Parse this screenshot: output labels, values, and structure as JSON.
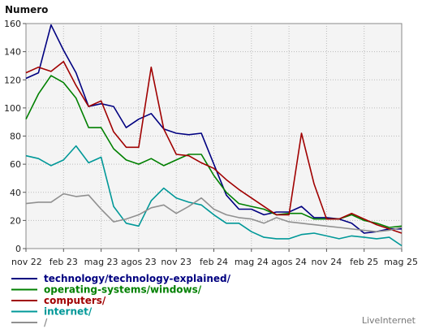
{
  "chart_data": {
    "type": "line",
    "ylabel": "Numero",
    "ylim": [
      0,
      160
    ],
    "yticks": [
      0,
      20,
      40,
      60,
      80,
      100,
      120,
      140,
      160
    ],
    "grid": true,
    "legend_position": "bottom-left",
    "x_tick_labels": [
      "nov 22",
      "feb 23",
      "mag 23",
      "agos 23",
      "nov 23",
      "feb 24",
      "mag 24",
      "agos 24",
      "nov 24",
      "feb 25",
      "mag 25"
    ],
    "x": [
      "2022-11",
      "2022-12",
      "2023-01",
      "2023-02",
      "2023-03",
      "2023-04",
      "2023-05",
      "2023-06",
      "2023-07",
      "2023-08",
      "2023-09",
      "2023-10",
      "2023-11",
      "2023-12",
      "2024-01",
      "2024-02",
      "2024-03",
      "2024-04",
      "2024-05",
      "2024-06",
      "2024-07",
      "2024-08",
      "2024-09",
      "2024-10",
      "2024-11",
      "2024-12",
      "2025-01",
      "2025-02",
      "2025-03",
      "2025-04",
      "2025-05"
    ],
    "series": [
      {
        "name": "technology/technology-explained/",
        "color": "#000080",
        "values": [
          121,
          125,
          159,
          141,
          125,
          101,
          103,
          101,
          86,
          92,
          96,
          85,
          82,
          81,
          82,
          60,
          38,
          28,
          28,
          24,
          26,
          26,
          30,
          22,
          22,
          21,
          18,
          11,
          12,
          14,
          14
        ]
      },
      {
        "name": "operating-systems/windows/",
        "color": "#008000",
        "values": [
          92,
          110,
          123,
          118,
          107,
          86,
          86,
          71,
          63,
          60,
          64,
          59,
          63,
          67,
          67,
          52,
          40,
          32,
          30,
          28,
          24,
          25,
          25,
          21,
          21,
          21,
          24,
          20,
          18,
          15,
          16
        ]
      },
      {
        "name": "computers/",
        "color": "#a00000",
        "values": [
          125,
          129,
          126,
          133,
          116,
          101,
          105,
          83,
          72,
          72,
          129,
          85,
          67,
          66,
          61,
          57,
          49,
          42,
          36,
          30,
          24,
          24,
          82,
          46,
          21,
          21,
          25,
          21,
          17,
          14,
          11
        ]
      },
      {
        "name": "internet/",
        "color": "#009898",
        "values": [
          66,
          64,
          59,
          63,
          73,
          61,
          65,
          30,
          18,
          16,
          34,
          43,
          36,
          33,
          31,
          24,
          18,
          18,
          12,
          8,
          7,
          7,
          10,
          11,
          9,
          7,
          9,
          8,
          7,
          8,
          2
        ]
      },
      {
        "name": "/",
        "color": "#909090",
        "values": [
          32,
          33,
          33,
          39,
          37,
          38,
          28,
          19,
          21,
          24,
          29,
          31,
          25,
          30,
          36,
          28,
          24,
          22,
          21,
          18,
          22,
          19,
          18,
          17,
          16,
          15,
          14,
          13,
          12,
          13,
          15
        ]
      }
    ]
  },
  "watermark": "LiveInternet"
}
